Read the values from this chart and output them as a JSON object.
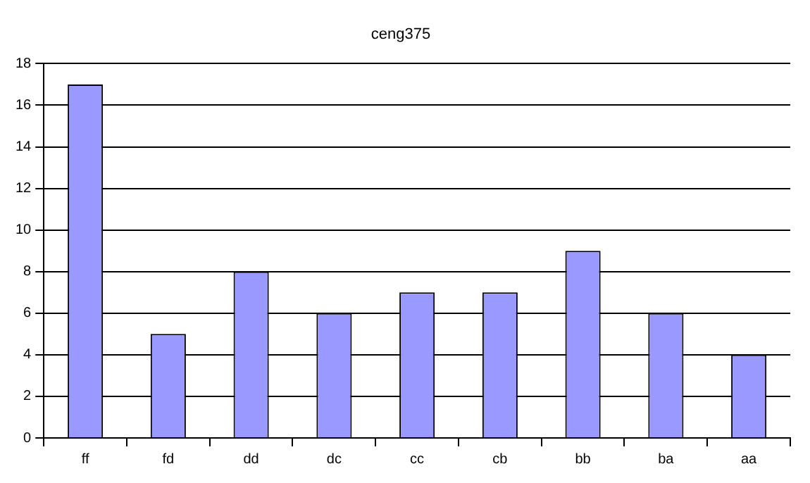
{
  "chart_data": {
    "type": "bar",
    "title": "ceng375",
    "categories": [
      "ff",
      "fd",
      "dd",
      "dc",
      "cc",
      "cb",
      "bb",
      "ba",
      "aa"
    ],
    "values": [
      17,
      5,
      8,
      6,
      7,
      7,
      9,
      6,
      4
    ],
    "color": "#9999ff",
    "ylim": [
      0,
      18
    ],
    "yticks": [
      0,
      2,
      4,
      6,
      8,
      10,
      12,
      14,
      16,
      18
    ],
    "grid": "y",
    "legend": false
  }
}
